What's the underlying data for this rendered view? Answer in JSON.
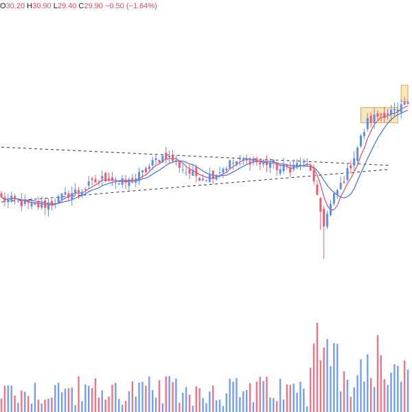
{
  "header": {
    "open_label": "O",
    "open": "30.20",
    "high_label": "H",
    "high": "30.90",
    "low_label": "L",
    "low": "29.40",
    "close_label": "C",
    "close": "29.90",
    "change": "−0.50 (−1.64%)"
  },
  "colors": {
    "up": "#5b8def",
    "down": "#ef5a6f",
    "ma_fast": "#e0495f",
    "ma_slow": "#3f6fd8",
    "trendline": "#333333",
    "highlight_fill": "#fbe3b4",
    "highlight_stroke": "#c9a04a",
    "header_value": "#e0495f"
  },
  "chart_data": {
    "type": "candlestick",
    "anchors": [
      [
        0,
        25.6
      ],
      [
        5,
        25.45
      ],
      [
        8,
        25.3
      ],
      [
        12,
        25.25
      ],
      [
        16,
        25.5
      ],
      [
        20,
        25.85
      ],
      [
        24,
        26.05
      ],
      [
        28,
        26.45
      ],
      [
        32,
        26.7
      ],
      [
        35,
        26.35
      ],
      [
        38,
        26.45
      ],
      [
        42,
        26.85
      ],
      [
        46,
        27.5
      ],
      [
        49,
        27.75
      ],
      [
        52,
        27.4
      ],
      [
        55,
        26.95
      ],
      [
        58,
        26.75
      ],
      [
        61,
        26.7
      ],
      [
        64,
        26.9
      ],
      [
        68,
        27.35
      ],
      [
        72,
        27.5
      ],
      [
        75,
        27.55
      ],
      [
        77,
        27.3
      ],
      [
        80,
        27.4
      ],
      [
        83,
        27.05
      ],
      [
        86,
        27.15
      ],
      [
        89,
        27.35
      ],
      [
        92,
        27.1
      ],
      [
        94,
        25.55
      ],
      [
        96,
        24.4
      ],
      [
        99,
        25.7
      ],
      [
        103,
        26.9
      ],
      [
        106,
        28.15
      ],
      [
        109,
        29.4
      ],
      [
        112,
        29.7
      ],
      [
        115,
        29.9
      ],
      [
        118,
        29.85
      ],
      [
        120,
        30.2
      ]
    ],
    "ma_periods": [
      5,
      10
    ],
    "trendlines": [
      {
        "x": [
          0,
          116
        ],
        "y": [
          28.15,
          27.25
        ]
      },
      {
        "x": [
          0,
          115
        ],
        "y": [
          25.45,
          27.05
        ]
      }
    ],
    "highlights": [
      {
        "x": [
          107,
          118
        ],
        "y": [
          29.35,
          30.1
        ]
      },
      {
        "x": [
          119,
          121
        ],
        "y": [
          30.4,
          31.2
        ]
      }
    ],
    "ylim": [
      15.1,
      35.4
    ],
    "xlim": [
      0,
      121
    ]
  }
}
